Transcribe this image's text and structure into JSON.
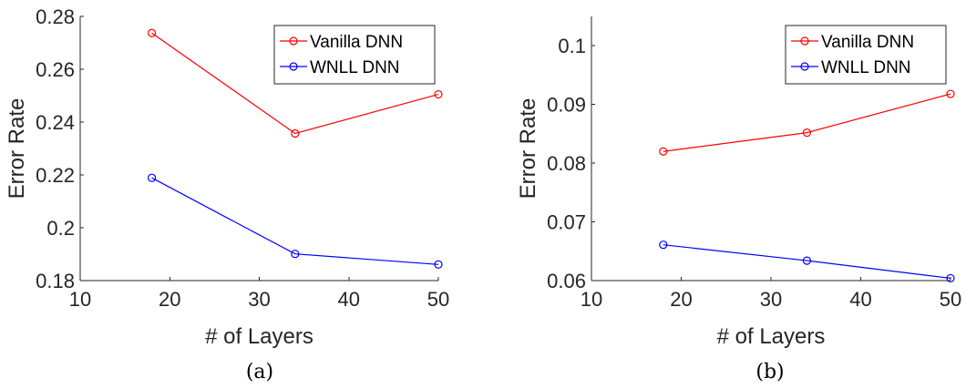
{
  "chart_data": [
    {
      "type": "line",
      "caption": "(a)",
      "xlabel": "# of Layers",
      "ylabel": "Error Rate",
      "xlim": [
        10,
        50
      ],
      "ylim": [
        0.18,
        0.28
      ],
      "xticks": [
        10,
        20,
        30,
        40,
        50
      ],
      "xtick_labels": [
        "10",
        "20",
        "30",
        "40",
        "50"
      ],
      "yticks": [
        0.18,
        0.2,
        0.22,
        0.24,
        0.26,
        0.28
      ],
      "ytick_labels": [
        "0.18",
        "0.2",
        "0.22",
        "0.24",
        "0.26",
        "0.28"
      ],
      "legend_position": "top-right",
      "grid": false,
      "x": [
        18,
        34,
        50
      ],
      "series": [
        {
          "name": "Vanilla DNN",
          "color": "#ff0000",
          "marker": "circle",
          "values": [
            0.2737,
            0.2357,
            0.2505
          ]
        },
        {
          "name": "WNLL DNN",
          "color": "#0000ff",
          "marker": "circle",
          "values": [
            0.2189,
            0.1901,
            0.1861
          ]
        }
      ]
    },
    {
      "type": "line",
      "caption": "(b)",
      "xlabel": "# of Layers",
      "ylabel": "Error Rate",
      "xlim": [
        10,
        50
      ],
      "ylim": [
        0.06,
        0.105
      ],
      "xticks": [
        10,
        20,
        30,
        40,
        50
      ],
      "xtick_labels": [
        "10",
        "20",
        "30",
        "40",
        "50"
      ],
      "yticks": [
        0.06,
        0.07,
        0.08,
        0.09,
        0.1
      ],
      "ytick_labels": [
        "0.06",
        "0.07",
        "0.08",
        "0.09",
        "0.1"
      ],
      "legend_position": "top-right",
      "grid": false,
      "x": [
        18,
        34,
        50
      ],
      "series": [
        {
          "name": "Vanilla DNN",
          "color": "#ff0000",
          "marker": "circle",
          "values": [
            0.082,
            0.0852,
            0.0918
          ]
        },
        {
          "name": "WNLL DNN",
          "color": "#0000ff",
          "marker": "circle",
          "values": [
            0.0661,
            0.0634,
            0.0604
          ]
        }
      ]
    }
  ]
}
